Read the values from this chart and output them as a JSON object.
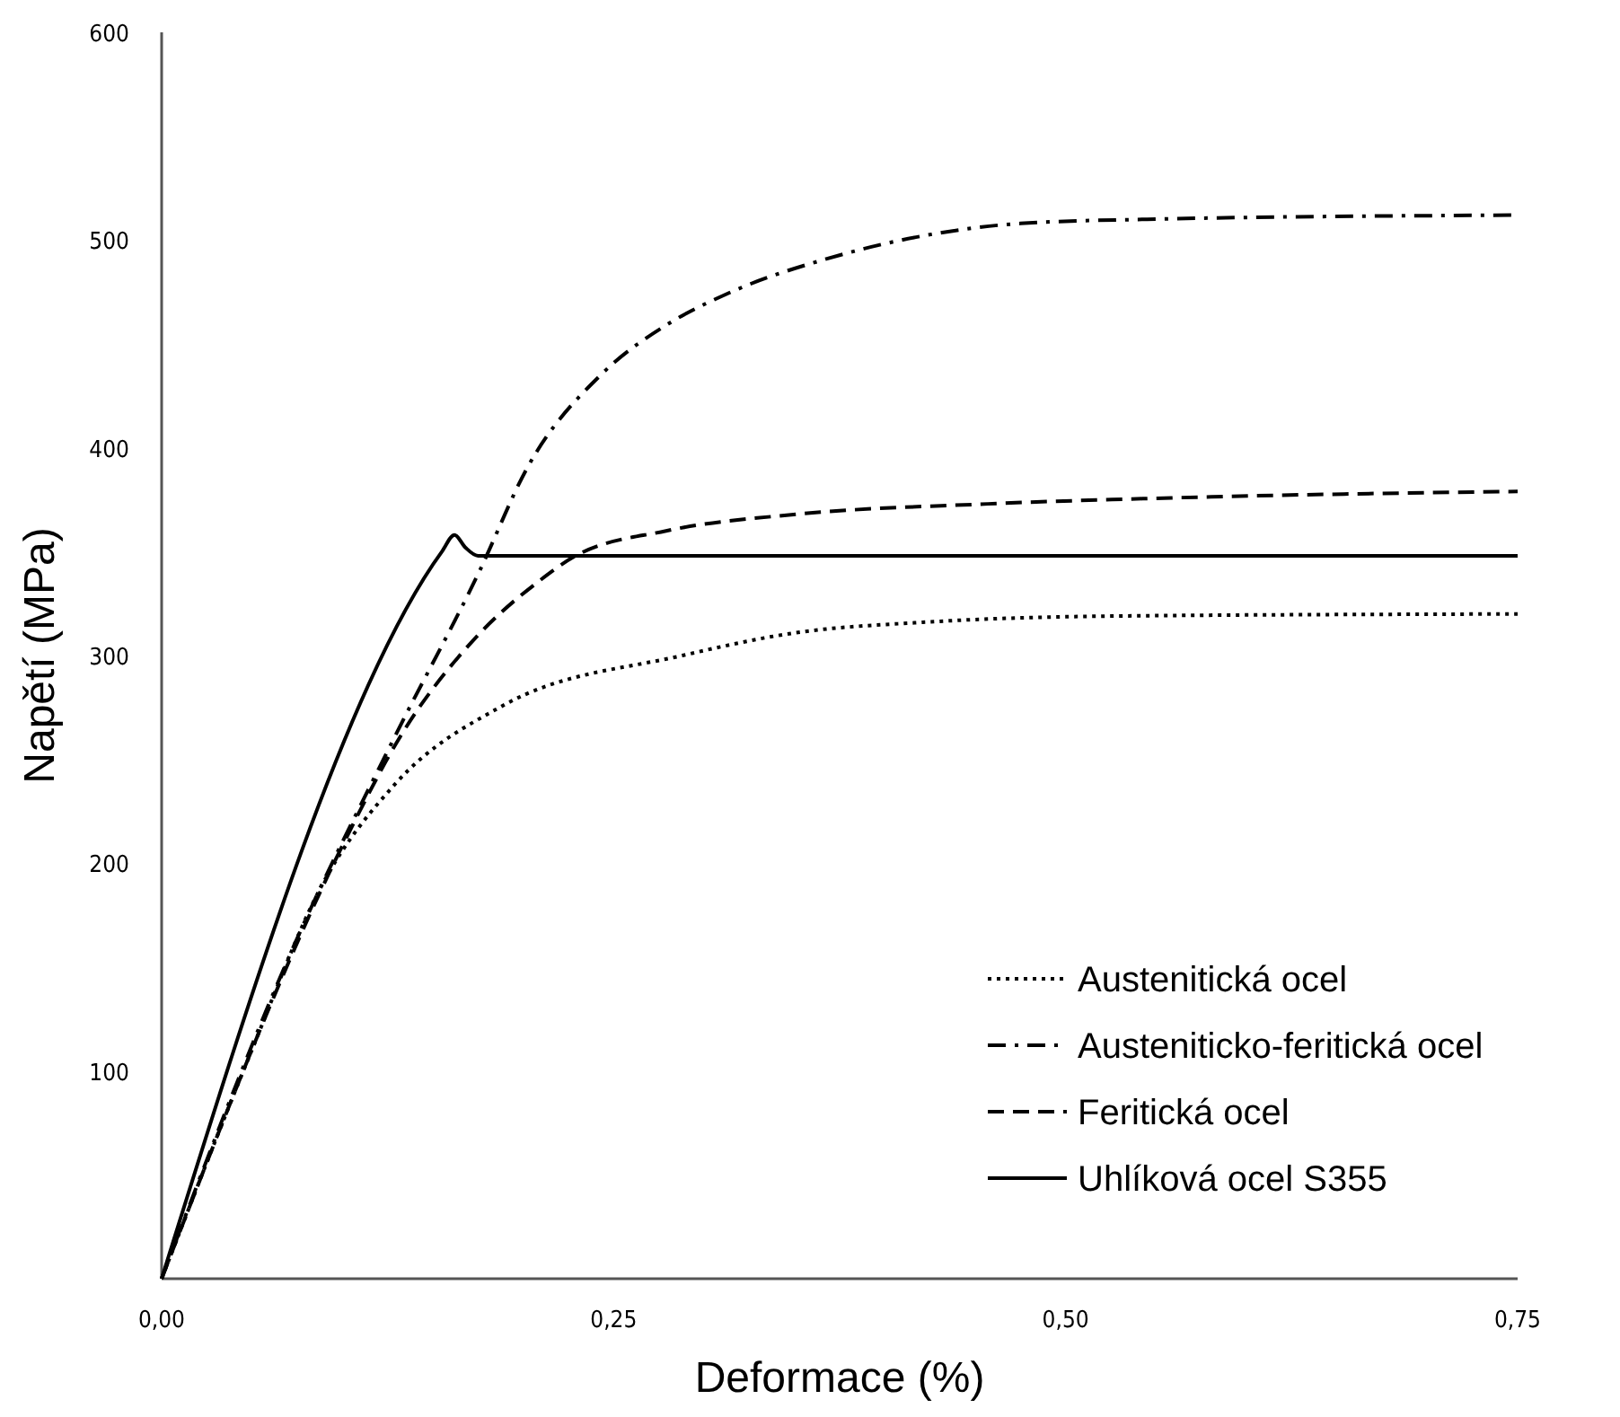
{
  "chart_data": {
    "type": "line",
    "xlabel": "Deformace (%)",
    "ylabel": "Napětí (MPa)",
    "xlim": [
      0,
      0.75
    ],
    "ylim": [
      0,
      600
    ],
    "xticks": [
      {
        "value": 0,
        "label": "0,00"
      },
      {
        "value": 0.25,
        "label": "0,25"
      },
      {
        "value": 0.5,
        "label": "0,50"
      },
      {
        "value": 0.75,
        "label": "0,75"
      }
    ],
    "yticks": [
      100,
      200,
      300,
      400,
      500,
      600
    ],
    "grid": false,
    "legend": "bottom right",
    "series": [
      {
        "name": "Austenitická ocel",
        "color": "#000000",
        "line_style": "dotted",
        "x": [
          0,
          0.048,
          0.089,
          0.129,
          0.189,
          0.288,
          0.351,
          0.421,
          0.527,
          0.75
        ],
        "values": [
          0,
          106,
          190,
          238,
          276,
          300,
          311,
          316,
          319,
          320
        ]
      },
      {
        "name": "Austeniticko-feritická ocel",
        "color": "#000000",
        "line_style": "dashdot",
        "x": [
          0,
          0.073,
          0.129,
          0.176,
          0.202,
          0.244,
          0.279,
          0.315,
          0.368,
          0.421,
          0.475,
          0.545,
          0.75
        ],
        "values": [
          0,
          160,
          261,
          341,
          390,
          436,
          459,
          475,
          491,
          502,
          508,
          510,
          512
        ]
      },
      {
        "name": "Feritická ocel",
        "color": "#000000",
        "line_style": "dashed",
        "x": [
          0,
          0.102,
          0.132,
          0.172,
          0.209,
          0.229,
          0.279,
          0.351,
          0.457,
          0.563,
          0.75
        ],
        "values": [
          0,
          212,
          261,
          307,
          336,
          348,
          360,
          368,
          373,
          376,
          379
        ]
      },
      {
        "name": "Uhlíková ocel S355",
        "color": "#000000",
        "line_style": "solid",
        "x": [
          0,
          0.155,
          0.162,
          0.168,
          0.175,
          0.75
        ],
        "values": [
          0,
          350,
          358,
          352,
          348,
          348
        ]
      }
    ]
  }
}
